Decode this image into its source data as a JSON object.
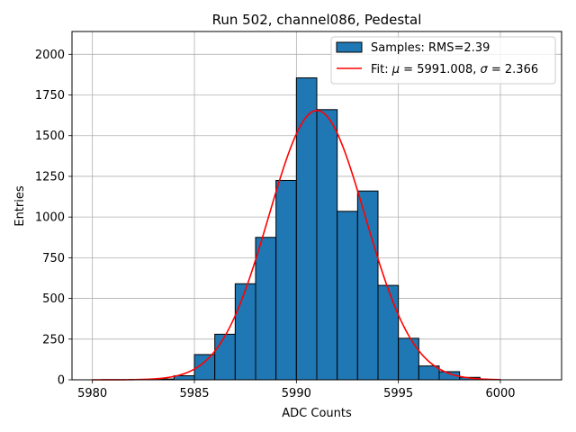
{
  "chart_data": {
    "type": "bar",
    "title": "Run 502, channel086, Pedestal",
    "xlabel": "ADC Counts",
    "ylabel": "Entries",
    "xlim": [
      5979,
      6003
    ],
    "ylim": [
      0,
      2140
    ],
    "xticks": [
      5980,
      5985,
      5990,
      5995,
      6000
    ],
    "yticks": [
      0,
      250,
      500,
      750,
      1000,
      1250,
      1500,
      1750,
      2000
    ],
    "grid": true,
    "legend_position": "top-right",
    "bin_width": 1,
    "bars": [
      {
        "x": 5983,
        "value": 5
      },
      {
        "x": 5984,
        "value": 25
      },
      {
        "x": 5985,
        "value": 155
      },
      {
        "x": 5986,
        "value": 280
      },
      {
        "x": 5987,
        "value": 590
      },
      {
        "x": 5988,
        "value": 875
      },
      {
        "x": 5989,
        "value": 1225
      },
      {
        "x": 5990,
        "value": 1855
      },
      {
        "x": 5991,
        "value": 1660
      },
      {
        "x": 5992,
        "value": 1035
      },
      {
        "x": 5993,
        "value": 1160
      },
      {
        "x": 5994,
        "value": 580
      },
      {
        "x": 5995,
        "value": 255
      },
      {
        "x": 5996,
        "value": 85
      },
      {
        "x": 5997,
        "value": 50
      },
      {
        "x": 5998,
        "value": 15
      }
    ],
    "fit": {
      "mu": 5991.008,
      "sigma": 2.366,
      "amplitude": 1655,
      "x_range": [
        5980,
        6000
      ]
    },
    "series": [
      {
        "name": "Samples: RMS=2.39",
        "color": "#1f77b4"
      },
      {
        "name": "Fit: ",
        "mu_label": "μ",
        "mu_text": " = 5991.008, ",
        "sigma_label": "σ",
        "sigma_text": " = 2.366",
        "color": "#ff0000"
      }
    ]
  }
}
